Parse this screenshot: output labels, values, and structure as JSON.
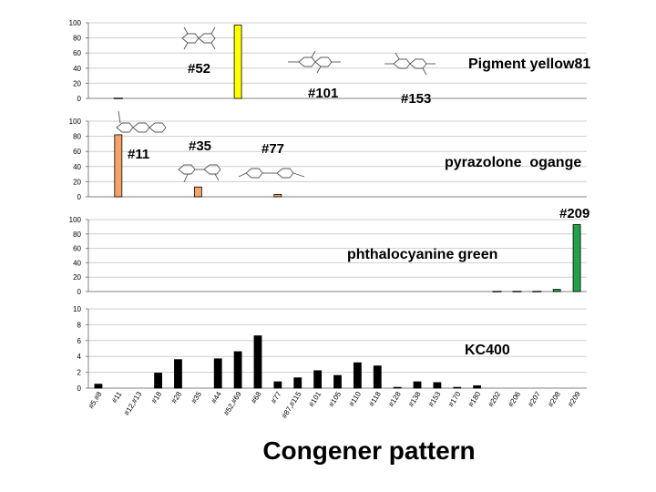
{
  "title": "Congener pattern",
  "chart_data": {
    "type": "bar",
    "categories": [
      "#5,#8",
      "#11",
      "#12,#13",
      "#18",
      "#28",
      "#35",
      "#44",
      "#52,#69",
      "#68",
      "#77",
      "#87,#115",
      "#101",
      "#105",
      "#110",
      "#118",
      "#128",
      "#138",
      "#153",
      "#170",
      "#180",
      "#202",
      "#206",
      "#207",
      "#208",
      "#209"
    ],
    "panels": [
      {
        "name": "Pigment yellow81",
        "color": "#ffff00",
        "ylim": [
          0,
          100
        ],
        "ticks": [
          0,
          20,
          40,
          60,
          80,
          100
        ],
        "values": [
          0,
          0,
          0,
          0,
          0,
          0,
          0,
          97,
          0,
          0,
          0,
          0,
          0,
          0,
          0,
          0,
          0,
          0,
          0,
          0,
          0,
          0,
          0,
          0,
          0
        ],
        "dash_values": [
          {
            "index": 1,
            "value": 0
          }
        ],
        "annotations": [
          "#52",
          "#101",
          "#153",
          "Pigment yellow81"
        ]
      },
      {
        "name": "pyrazolone ogange",
        "color": "#f4a46a",
        "ylim": [
          0,
          100
        ],
        "ticks": [
          0,
          20,
          40,
          60,
          80,
          100
        ],
        "values": [
          0,
          82,
          0,
          0,
          0,
          13,
          0,
          0,
          0,
          3,
          0,
          0,
          0,
          0,
          0,
          0,
          0,
          0,
          0,
          0,
          0,
          0,
          0,
          0,
          0
        ],
        "annotations": [
          "#11",
          "#35",
          "#77",
          "pyrazolone  ogange"
        ]
      },
      {
        "name": "phthalocyanine green",
        "color": "#1fa24a",
        "ylim": [
          0,
          100
        ],
        "ticks": [
          0,
          20,
          40,
          60,
          80,
          100
        ],
        "values": [
          0,
          0,
          0,
          0,
          0,
          0,
          0,
          0,
          0,
          0,
          0,
          0,
          0,
          0,
          0,
          0,
          0,
          0,
          0,
          0,
          0,
          0,
          0,
          3,
          93
        ],
        "dash_values": [
          {
            "index": 20,
            "value": 0
          },
          {
            "index": 21,
            "value": 0
          },
          {
            "index": 22,
            "value": 0
          }
        ],
        "annotations": [
          "#209",
          "phthalocyanine green"
        ]
      },
      {
        "name": "KC400",
        "color": "#000000",
        "ylim": [
          0,
          10
        ],
        "ticks": [
          0,
          2,
          4,
          6,
          8,
          10
        ],
        "values": [
          0.5,
          0,
          0,
          1.9,
          3.6,
          0,
          3.7,
          4.6,
          6.6,
          0.8,
          1.3,
          2.2,
          1.6,
          3.2,
          2.8,
          0.1,
          0.8,
          0.7,
          0.1,
          0.3,
          0,
          0,
          0,
          0,
          0
        ],
        "annotations": [
          "KC400"
        ]
      }
    ]
  }
}
